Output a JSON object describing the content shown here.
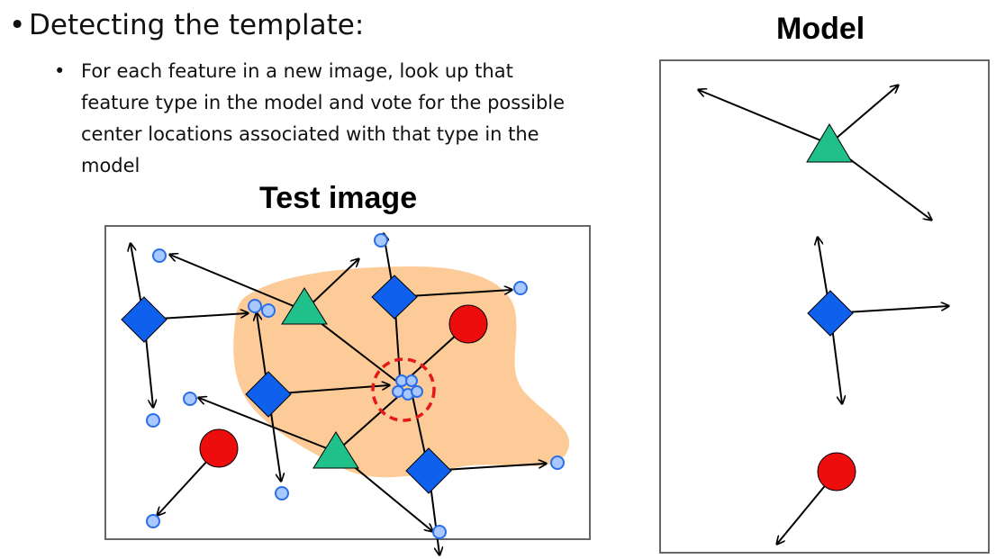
{
  "slide": {
    "bullet_main": "Detecting the template:",
    "bullet_sub": "For each feature in a new image, look up that feature type in the model and vote for the possible center locations associated with that type in the model",
    "test_title": "Test image",
    "model_title": "Model"
  },
  "colors": {
    "blob": "#fccb98",
    "triangle": "#20c08a",
    "diamond": "#1060ee",
    "circle": "#ee0d0d",
    "vote": "#a8c8ff",
    "vote_stroke": "#2b6ee8",
    "center_ring": "#e41818"
  },
  "icons": {
    "triangle": "triangle-feature-icon",
    "diamond": "diamond-feature-icon",
    "circle": "circle-feature-icon",
    "vote": "vote-circle-icon"
  }
}
